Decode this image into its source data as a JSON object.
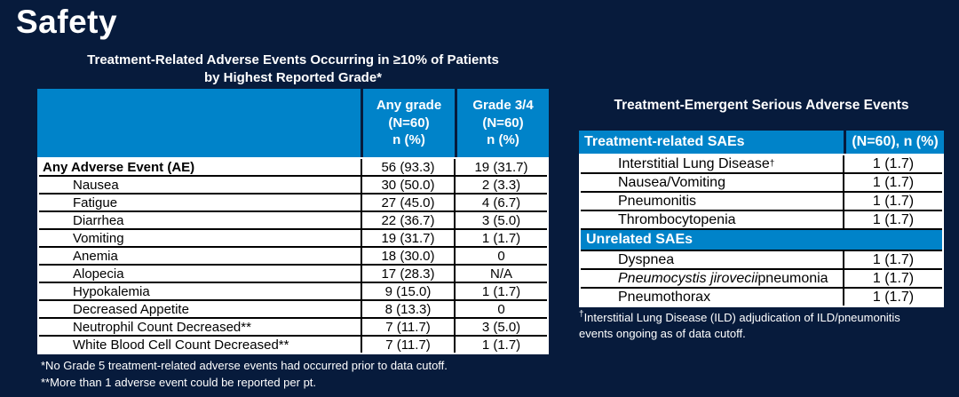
{
  "page": {
    "title": "Safety",
    "background_color": "#071B3C",
    "accent_blue": "#0083C9"
  },
  "left_table": {
    "title": "Treatment-Related Adverse Events Occurring in ≥10% of Patients\nby Highest Reported Grade*",
    "columns": {
      "label": "",
      "any_grade": "Any grade\n(N=60)\nn (%)",
      "grade_34": "Grade 3/4\n(N=60)\nn (%)"
    },
    "rows": [
      {
        "label": "Any Adverse Event (AE)",
        "any_grade": "56 (93.3)",
        "grade_34": "19 (31.7)"
      },
      {
        "label": "Nausea",
        "any_grade": "30 (50.0)",
        "grade_34": "2 (3.3)"
      },
      {
        "label": "Fatigue",
        "any_grade": "27 (45.0)",
        "grade_34": "4 (6.7)"
      },
      {
        "label": "Diarrhea",
        "any_grade": "22 (36.7)",
        "grade_34": "3 (5.0)"
      },
      {
        "label": "Vomiting",
        "any_grade": "19 (31.7)",
        "grade_34": "1 (1.7)"
      },
      {
        "label": "Anemia",
        "any_grade": "18 (30.0)",
        "grade_34": "0"
      },
      {
        "label": "Alopecia",
        "any_grade": "17 (28.3)",
        "grade_34": "N/A"
      },
      {
        "label": "Hypokalemia",
        "any_grade": "9 (15.0)",
        "grade_34": "1 (1.7)"
      },
      {
        "label": "Decreased Appetite",
        "any_grade": "8 (13.3)",
        "grade_34": "0"
      },
      {
        "label": "Neutrophil Count Decreased**",
        "any_grade": "7 (11.7)",
        "grade_34": "3 (5.0)"
      },
      {
        "label": "White Blood Cell Count Decreased**",
        "any_grade": "7 (11.7)",
        "grade_34": "1 (1.7)"
      }
    ],
    "footnotes": [
      "*No Grade 5 treatment-related adverse events had occurred prior to data cutoff.",
      "**More than 1 adverse event could be reported per pt."
    ]
  },
  "right_table": {
    "title": "Treatment-Emergent Serious Adverse Events",
    "header": {
      "label": "Treatment-related SAEs",
      "value": "(N=60), n (%)"
    },
    "related_rows": [
      {
        "label": "Interstitial Lung Disease",
        "sup": "†",
        "value": "1 (1.7)"
      },
      {
        "label": "Nausea/Vomiting",
        "value": "1 (1.7)"
      },
      {
        "label": "Pneumonitis",
        "value": "1 (1.7)"
      },
      {
        "label": "Thrombocytopenia",
        "value": "1 (1.7)"
      }
    ],
    "section_header": "Unrelated SAEs",
    "unrelated_rows": [
      {
        "label": "Dyspnea",
        "value": "1 (1.7)"
      },
      {
        "label_italic": "Pneumocystis jirovecii",
        "label": " pneumonia",
        "value": "1 (1.7)"
      },
      {
        "label": "Pneumothorax",
        "value": "1 (1.7)"
      }
    ],
    "footnote": {
      "sup": "†",
      "text": "Interstitial Lung Disease (ILD) adjudication of ILD/pneumonitis events ongoing as of data cutoff."
    }
  }
}
